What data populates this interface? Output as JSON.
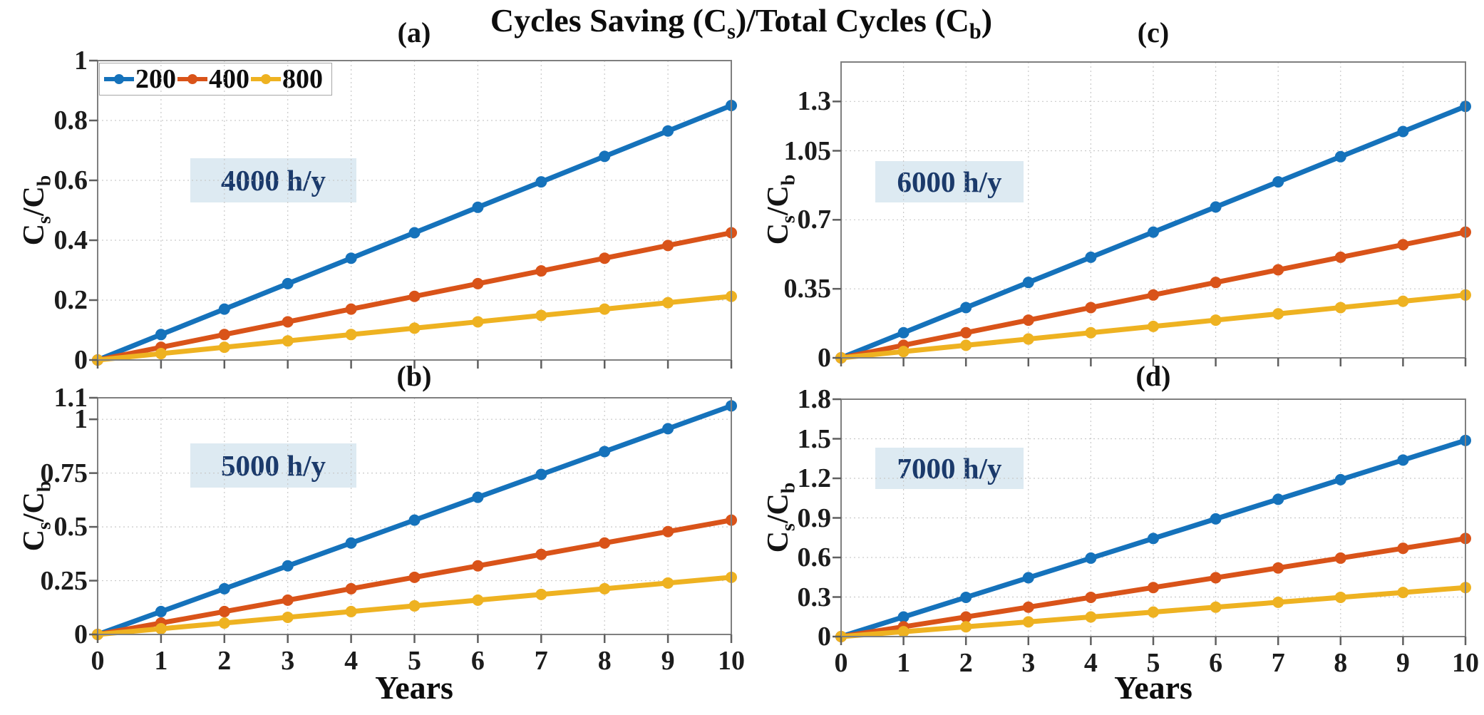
{
  "figure_title": "Cycles Saving (C_s)/Total Cycles (C_b)",
  "colors": {
    "series_200": "#1572bb",
    "series_400": "#d95319",
    "series_800": "#eeb221",
    "annotation_bg": "#ddeaf2",
    "annotation_text": "#1b3a6b",
    "grid": "#c9c9c9",
    "axis_box": "#7f7f7f"
  },
  "legend": {
    "entries": [
      {
        "label": "200",
        "color": "#1572bb"
      },
      {
        "label": "400",
        "color": "#d95319"
      },
      {
        "label": "800",
        "color": "#eeb221"
      }
    ],
    "position": "top-left-inside-panel-a"
  },
  "chart_data": [
    {
      "id": "a",
      "type": "line",
      "panel_label": "(a)",
      "annotation": "4000 h/y",
      "ylabel": "C_s/C_b",
      "xlabel": "",
      "x": [
        0,
        1,
        2,
        3,
        4,
        5,
        6,
        7,
        8,
        9,
        10
      ],
      "xlim": [
        0,
        10
      ],
      "ylim": [
        0,
        1
      ],
      "xticks": [
        0,
        1,
        2,
        3,
        4,
        5,
        6,
        7,
        8,
        9,
        10
      ],
      "xtick_labels_visible": false,
      "yticks": [
        {
          "value": 0,
          "label": "0"
        },
        {
          "value": 0.2,
          "label": "0.2"
        },
        {
          "value": 0.4,
          "label": "0.4"
        },
        {
          "value": 0.6,
          "label": "0.6"
        },
        {
          "value": 0.8,
          "label": "0.8"
        },
        {
          "value": 1,
          "label": "1"
        }
      ],
      "grid": true,
      "legend_visible": true,
      "series": [
        {
          "name": "200",
          "color": "#1572bb",
          "values": [
            0,
            0.085,
            0.17,
            0.255,
            0.34,
            0.425,
            0.51,
            0.595,
            0.68,
            0.765,
            0.85
          ]
        },
        {
          "name": "400",
          "color": "#d95319",
          "values": [
            0,
            0.0425,
            0.085,
            0.1275,
            0.17,
            0.2125,
            0.255,
            0.2975,
            0.34,
            0.3825,
            0.425
          ]
        },
        {
          "name": "800",
          "color": "#eeb221",
          "values": [
            0,
            0.0213,
            0.0425,
            0.0638,
            0.085,
            0.1063,
            0.1275,
            0.1488,
            0.17,
            0.1913,
            0.2125
          ]
        }
      ]
    },
    {
      "id": "b",
      "type": "line",
      "panel_label": "(b)",
      "annotation": "5000 h/y",
      "ylabel": "C_s/C_b",
      "xlabel": "Years",
      "x": [
        0,
        1,
        2,
        3,
        4,
        5,
        6,
        7,
        8,
        9,
        10
      ],
      "xlim": [
        0,
        10
      ],
      "ylim": [
        0,
        1.1
      ],
      "xticks": [
        0,
        1,
        2,
        3,
        4,
        5,
        6,
        7,
        8,
        9,
        10
      ],
      "xtick_labels_visible": true,
      "yticks": [
        {
          "value": 0,
          "label": "0"
        },
        {
          "value": 0.25,
          "label": "0.25"
        },
        {
          "value": 0.5,
          "label": "0.5"
        },
        {
          "value": 0.75,
          "label": "0.75"
        },
        {
          "value": 1,
          "label": "1"
        },
        {
          "value": 1.1,
          "label": "1.1"
        }
      ],
      "grid": true,
      "legend_visible": false,
      "series": [
        {
          "name": "200",
          "color": "#1572bb",
          "values": [
            0,
            0.1063,
            0.2125,
            0.3188,
            0.425,
            0.5313,
            0.6375,
            0.7438,
            0.85,
            0.9563,
            1.0625
          ]
        },
        {
          "name": "400",
          "color": "#d95319",
          "values": [
            0,
            0.0531,
            0.1063,
            0.1594,
            0.2125,
            0.2656,
            0.3188,
            0.3719,
            0.425,
            0.4781,
            0.5313
          ]
        },
        {
          "name": "800",
          "color": "#eeb221",
          "values": [
            0,
            0.0266,
            0.0531,
            0.0797,
            0.1063,
            0.1328,
            0.1594,
            0.1859,
            0.2125,
            0.2391,
            0.2656
          ]
        }
      ]
    },
    {
      "id": "c",
      "type": "line",
      "panel_label": "(c)",
      "annotation": "6000 h/y",
      "ylabel": "C_s/C_b",
      "xlabel": "",
      "x": [
        0,
        1,
        2,
        3,
        4,
        5,
        6,
        7,
        8,
        9,
        10
      ],
      "xlim": [
        0,
        10
      ],
      "ylim": [
        0,
        1.5
      ],
      "xticks": [
        0,
        1,
        2,
        3,
        4,
        5,
        6,
        7,
        8,
        9,
        10
      ],
      "xtick_labels_visible": false,
      "yticks": [
        {
          "value": 0,
          "label": "0"
        },
        {
          "value": 0.35,
          "label": "0.35"
        },
        {
          "value": 0.7,
          "label": "0.7"
        },
        {
          "value": 1.05,
          "label": "1.05"
        },
        {
          "value": 1.3,
          "label": "1.3"
        }
      ],
      "grid": true,
      "legend_visible": false,
      "series": [
        {
          "name": "200",
          "color": "#1572bb",
          "values": [
            0,
            0.1275,
            0.255,
            0.3825,
            0.51,
            0.6375,
            0.765,
            0.8925,
            1.02,
            1.1475,
            1.275
          ]
        },
        {
          "name": "400",
          "color": "#d95319",
          "values": [
            0,
            0.0638,
            0.1275,
            0.1913,
            0.255,
            0.3188,
            0.3825,
            0.4463,
            0.51,
            0.5738,
            0.6375
          ]
        },
        {
          "name": "800",
          "color": "#eeb221",
          "values": [
            0,
            0.0319,
            0.0638,
            0.0956,
            0.1275,
            0.1594,
            0.1913,
            0.2231,
            0.255,
            0.2869,
            0.3188
          ]
        }
      ]
    },
    {
      "id": "d",
      "type": "line",
      "panel_label": "(d)",
      "annotation": "7000 h/y",
      "ylabel": "C_s/C_b",
      "xlabel": "Years",
      "x": [
        0,
        1,
        2,
        3,
        4,
        5,
        6,
        7,
        8,
        9,
        10
      ],
      "xlim": [
        0,
        10
      ],
      "ylim": [
        0,
        1.8
      ],
      "xticks": [
        0,
        1,
        2,
        3,
        4,
        5,
        6,
        7,
        8,
        9,
        10
      ],
      "xtick_labels_visible": true,
      "yticks": [
        {
          "value": 0,
          "label": "0"
        },
        {
          "value": 0.3,
          "label": "0.3"
        },
        {
          "value": 0.6,
          "label": "0.6"
        },
        {
          "value": 0.9,
          "label": "0.9"
        },
        {
          "value": 1.2,
          "label": "1.2"
        },
        {
          "value": 1.5,
          "label": "1.5"
        },
        {
          "value": 1.8,
          "label": "1.8"
        }
      ],
      "grid": true,
      "legend_visible": false,
      "series": [
        {
          "name": "200",
          "color": "#1572bb",
          "values": [
            0,
            0.1488,
            0.2975,
            0.4463,
            0.595,
            0.7438,
            0.8925,
            1.0413,
            1.19,
            1.3388,
            1.4875
          ]
        },
        {
          "name": "400",
          "color": "#d95319",
          "values": [
            0,
            0.0744,
            0.1488,
            0.2231,
            0.2975,
            0.3719,
            0.4463,
            0.5206,
            0.595,
            0.6694,
            0.7438
          ]
        },
        {
          "name": "800",
          "color": "#eeb221",
          "values": [
            0,
            0.0372,
            0.0744,
            0.1116,
            0.1488,
            0.1859,
            0.2231,
            0.2603,
            0.2975,
            0.3347,
            0.3719
          ]
        }
      ]
    }
  ]
}
